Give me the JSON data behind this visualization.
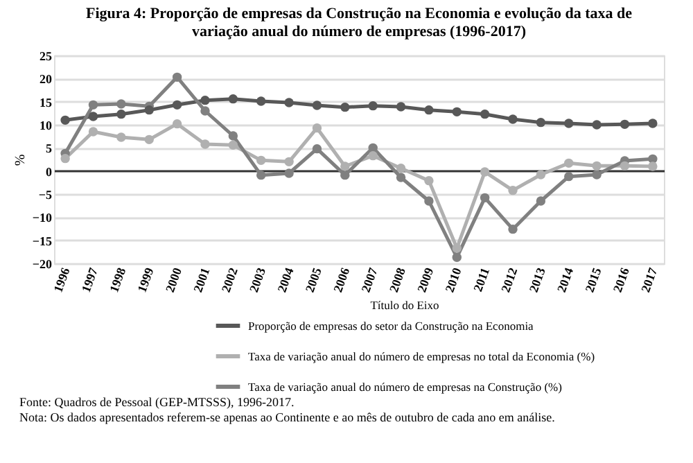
{
  "chart_data": {
    "type": "line",
    "title": "Figura 4: Proporção de empresas da Construção na Economia e evolução da taxa de variação anual do número de empresas (1996-2017)",
    "ylabel": "%",
    "legend_title": "Título do Eixo",
    "categories": [
      "1996",
      "1997",
      "1998",
      "1999",
      "2000",
      "2001",
      "2002",
      "2003",
      "2004",
      "2005",
      "2006",
      "2007",
      "2008",
      "2009",
      "2010",
      "2011",
      "2012",
      "2013",
      "2014",
      "2015",
      "2016",
      "2017"
    ],
    "series": [
      {
        "name": "Proporção de empresas do setor da Construção na Economia",
        "color": "#585858",
        "values": [
          11.0,
          11.8,
          12.3,
          13.2,
          14.3,
          15.3,
          15.6,
          15.1,
          14.8,
          14.2,
          13.8,
          14.1,
          13.9,
          13.2,
          12.8,
          12.3,
          11.2,
          10.5,
          10.3,
          10.0,
          10.1,
          10.3
        ]
      },
      {
        "name": "Taxa de variação anual do número de empresas no total da Economia (%)",
        "color": "#b0b0b0",
        "values": [
          2.7,
          8.5,
          7.3,
          6.8,
          10.2,
          5.8,
          5.6,
          2.3,
          2.0,
          9.3,
          1.0,
          3.3,
          0.6,
          -2.1,
          -16.7,
          -0.2,
          -4.2,
          -0.8,
          1.7,
          1.1,
          1.1,
          1.0
        ]
      },
      {
        "name": "Taxa de variação anual do número de empresas na Construção (%)",
        "color": "#808080",
        "values": [
          3.8,
          14.3,
          14.5,
          14.0,
          20.3,
          13.0,
          7.6,
          -0.9,
          -0.5,
          4.8,
          -0.9,
          5.0,
          -1.4,
          -6.5,
          -18.7,
          -5.8,
          -12.6,
          -6.5,
          -1.2,
          -0.8,
          2.2,
          2.6
        ]
      }
    ],
    "ylim": [
      -20,
      25
    ],
    "yticks": [
      -20,
      -15,
      -10,
      -5,
      0,
      5,
      10,
      15,
      20,
      25
    ],
    "grid": "y",
    "legend": "bottom",
    "marker": "circle",
    "line_style": "solid",
    "annotations": [
      "Fonte: Quadros de Pessoal (GEP-MTSSS), 1996-2017.",
      "Nota: Os dados apresentados referem-se apenas ao Continente e ao mês de outubro de cada ano em análise."
    ]
  }
}
